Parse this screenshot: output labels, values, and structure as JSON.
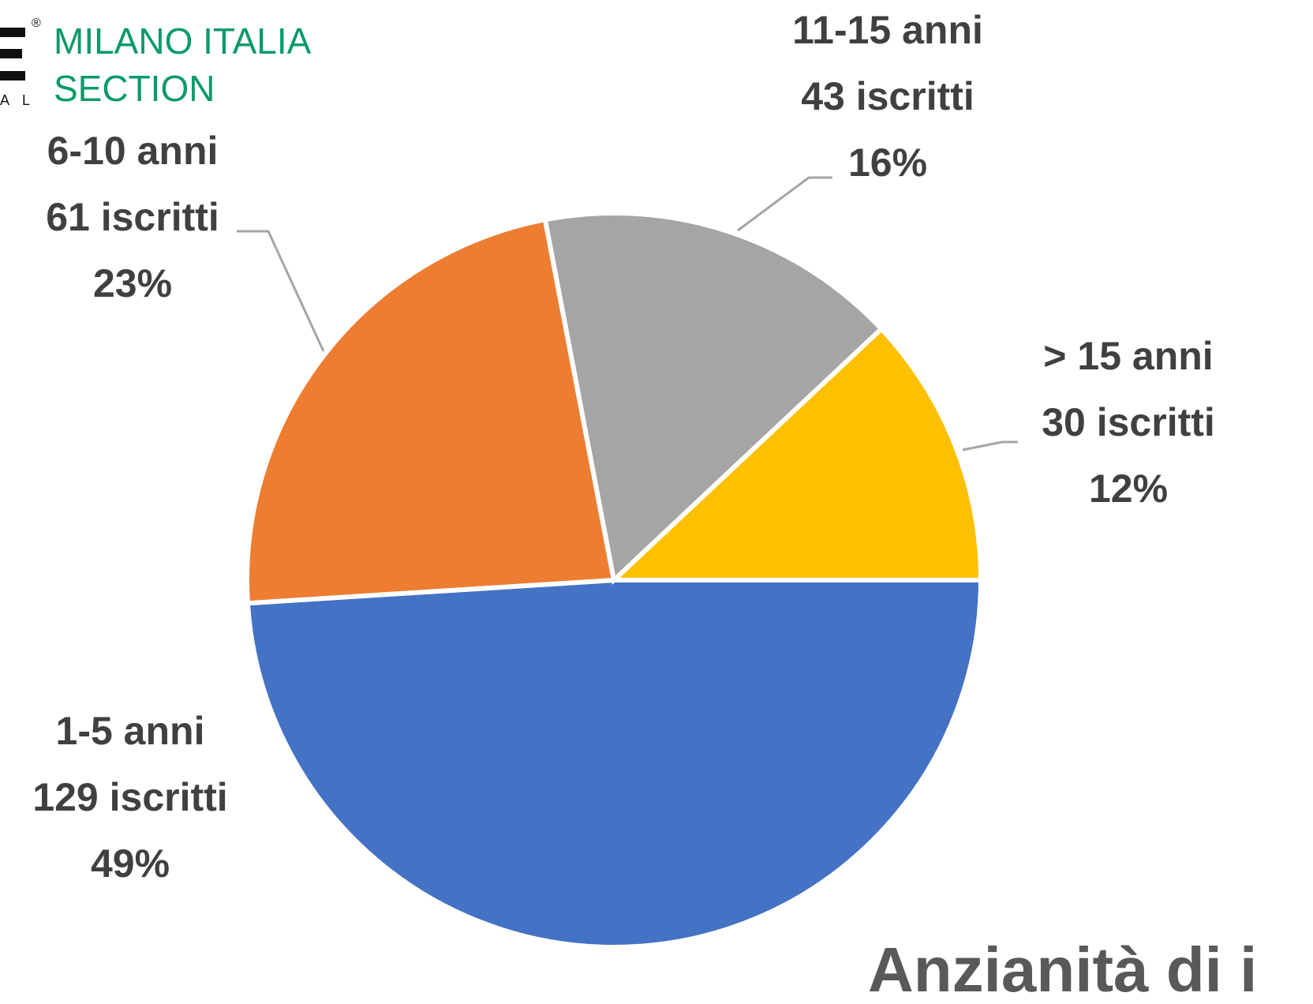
{
  "chart_data": {
    "type": "pie",
    "title": "Anzianità di i",
    "categories": [
      "1-5 anni",
      "6-10 anni",
      "11-15 anni",
      "> 15 anni"
    ],
    "values": [
      49,
      23,
      16,
      12
    ],
    "value_labels": [
      "49%",
      "23%",
      "16%",
      "12%"
    ],
    "count_labels": [
      "129 iscritti",
      "61 iscritti",
      "43 iscritti",
      "30 iscritti"
    ],
    "colors": [
      "#4472c4",
      "#ed7d31",
      "#a5a5a5",
      "#ffc000"
    ]
  },
  "logo": {
    "line1": "MILANO ITALIA",
    "line2": "SECTION",
    "fragment": "A L",
    "mark": "®"
  }
}
